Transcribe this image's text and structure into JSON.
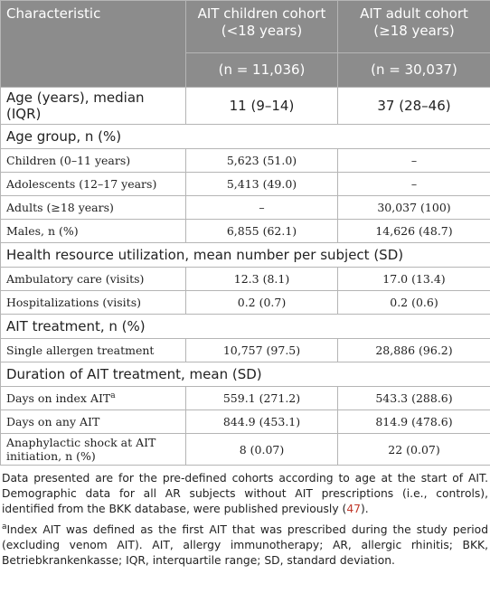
{
  "table": {
    "header": {
      "characteristic": "Characteristic",
      "columns": [
        {
          "title": "AIT children cohort (<18 years)",
          "n": "(n = 11,036)"
        },
        {
          "title": "AIT adult cohort (≥18 years)",
          "n": "(n = 30,037)"
        }
      ]
    },
    "rows": [
      {
        "label": "Age (years), median (IQR)",
        "values": [
          "11 (9–14)",
          "37 (28–46)"
        ],
        "style": "sans"
      },
      {
        "section": "Age group, n (%)"
      },
      {
        "label": "Children (0–11 years)",
        "values": [
          "5,623 (51.0)",
          "–"
        ]
      },
      {
        "label": "Adolescents (12–17 years)",
        "values": [
          "5,413 (49.0)",
          "–"
        ]
      },
      {
        "label": "Adults (≥18 years)",
        "values": [
          "–",
          "30,037 (100)"
        ]
      },
      {
        "label": "Males, n (%)",
        "values": [
          "6,855 (62.1)",
          "14,626 (48.7)"
        ]
      },
      {
        "section": "Health resource utilization, mean number per subject (SD)"
      },
      {
        "label": "Ambulatory care (visits)",
        "values": [
          "12.3 (8.1)",
          "17.0 (13.4)"
        ]
      },
      {
        "label": "Hospitalizations (visits)",
        "values": [
          "0.2 (0.7)",
          "0.2 (0.6)"
        ]
      },
      {
        "section": "AIT treatment, n (%)"
      },
      {
        "label": "Single allergen treatment",
        "values": [
          "10,757 (97.5)",
          "28,886 (96.2)"
        ]
      },
      {
        "section": "Duration of AIT treatment, mean (SD)"
      },
      {
        "label": "Days on index AIT",
        "marker": "a",
        "values": [
          "559.1 (271.2)",
          "543.3 (288.6)"
        ]
      },
      {
        "label": "Days on any AIT",
        "values": [
          "844.9 (453.1)",
          "814.9 (478.6)"
        ]
      },
      {
        "label": "Anaphylactic shock at AIT initiation, n (%)",
        "values": [
          "8 (0.07)",
          "22 (0.07)"
        ]
      }
    ],
    "notes": [
      {
        "parts": [
          "Data presented are for the pre-defined cohorts according to age at the start of AIT. Demographic data for all AR subjects without AIT prescriptions (i.e., controls), identified from the BKK database, were published previously (",
          "47",
          ")."
        ]
      },
      {
        "marker": "a",
        "text": "Index AIT was defined as the first AIT that was prescribed during the study period (excluding venom AIT). AIT, allergy immunotherapy; AR, allergic rhinitis; BKK, Betriebkrankenkasse; IQR, interquartile range; SD, standard deviation."
      }
    ]
  }
}
